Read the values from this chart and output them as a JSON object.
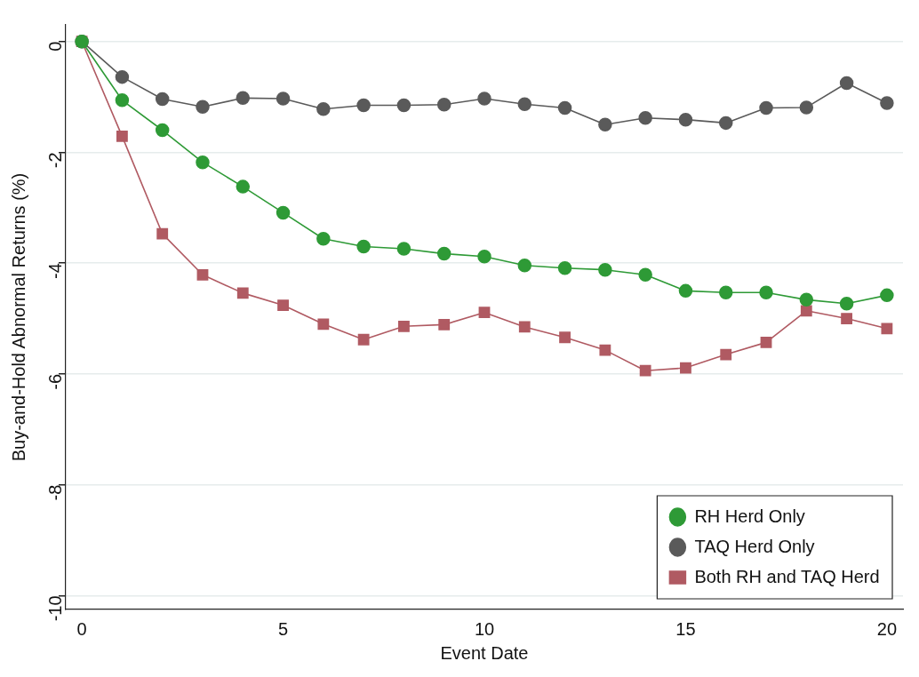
{
  "chart_data": {
    "type": "line",
    "xlabel": "Event Date",
    "ylabel": "Buy-and-Hold Abnormal Returns (%)",
    "x": [
      0,
      1,
      2,
      3,
      4,
      5,
      6,
      7,
      8,
      9,
      10,
      11,
      12,
      13,
      14,
      15,
      16,
      17,
      18,
      19,
      20
    ],
    "xlim": [
      -0.4,
      20.4
    ],
    "xticks": [
      0,
      5,
      10,
      15,
      20
    ],
    "ylim": [
      -10.25,
      0.3
    ],
    "yticks": [
      -10,
      -8,
      -6,
      -4,
      -2,
      0
    ],
    "grid": "y",
    "legend": "bottom right",
    "series": [
      {
        "name": "RH Herd Only",
        "color": "#2e9a36",
        "marker": "circle",
        "values": [
          0,
          -1.06,
          -1.6,
          -2.18,
          -2.62,
          -3.09,
          -3.56,
          -3.7,
          -3.74,
          -3.83,
          -3.88,
          -4.04,
          -4.09,
          -4.12,
          -4.21,
          -4.5,
          -4.53,
          -4.53,
          -4.66,
          -4.73,
          -4.58
        ]
      },
      {
        "name": "TAQ Herd Only",
        "color": "#5a5a5a",
        "marker": "circle",
        "values": [
          0,
          -0.64,
          -1.04,
          -1.18,
          -1.02,
          -1.03,
          -1.22,
          -1.15,
          -1.15,
          -1.14,
          -1.03,
          -1.13,
          -1.2,
          -1.5,
          -1.38,
          -1.41,
          -1.47,
          -1.2,
          -1.19,
          -0.75,
          -1.11
        ]
      },
      {
        "name": "Both RH and TAQ Herd",
        "color": "#b05a62",
        "marker": "square",
        "values": [
          0,
          -1.71,
          -3.47,
          -4.21,
          -4.54,
          -4.76,
          -5.1,
          -5.38,
          -5.14,
          -5.11,
          -4.89,
          -5.15,
          -5.34,
          -5.57,
          -5.94,
          -5.89,
          -5.65,
          -5.43,
          -4.86,
          -5,
          -5.18
        ]
      }
    ]
  }
}
